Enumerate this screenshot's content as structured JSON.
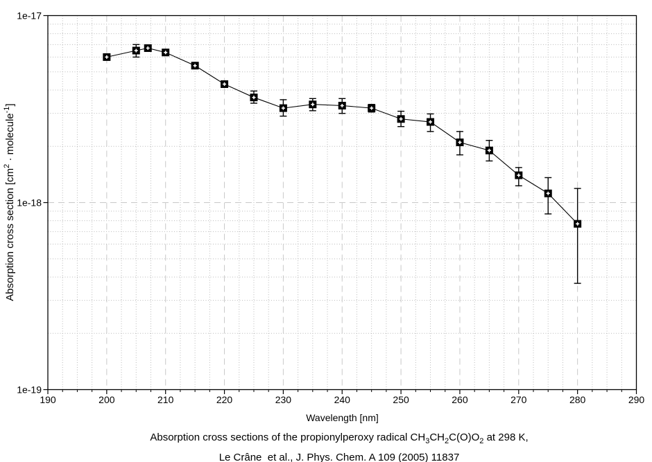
{
  "chart_data": {
    "type": "line",
    "title": "",
    "xlabel": "Wavelength [nm]",
    "ylabel": "Absorption cross section [cm2 · molecule-1]",
    "ylabel_parts": [
      "Absorption cross section [cm",
      "2",
      " · molecule",
      "-1",
      "]"
    ],
    "xlim": [
      190,
      290
    ],
    "ylog_top_exponent": -17,
    "ylog_bottom_exponent": -19,
    "x_major_ticks": [
      190,
      200,
      210,
      220,
      230,
      240,
      250,
      260,
      270,
      280,
      290
    ],
    "x_minor_step": 2.5,
    "y_ticks": [
      {
        "label": "1e-17",
        "value": 1e-17
      },
      {
        "label": "1e-18",
        "value": 1e-18
      },
      {
        "label": "1e-19",
        "value": 1e-19
      }
    ],
    "y_minor_exponents": [
      -18,
      -19
    ],
    "grid": true,
    "legend_position": "none",
    "series": [
      {
        "name": "absorption-cross-section",
        "marker": "black-square-with-white-center-cross",
        "points": [
          {
            "wavelength_nm": 200,
            "sigma": 6e-18,
            "upper": null,
            "lower": null
          },
          {
            "wavelength_nm": 205,
            "sigma": 6.5e-18,
            "upper": 7e-18,
            "lower": 6e-18
          },
          {
            "wavelength_nm": 207,
            "sigma": 6.7e-18,
            "upper": null,
            "lower": null
          },
          {
            "wavelength_nm": 210,
            "sigma": 6.35e-18,
            "upper": null,
            "lower": null
          },
          {
            "wavelength_nm": 215,
            "sigma": 5.4e-18,
            "upper": null,
            "lower": null
          },
          {
            "wavelength_nm": 220,
            "sigma": 4.3e-18,
            "upper": null,
            "lower": null
          },
          {
            "wavelength_nm": 225,
            "sigma": 3.65e-18,
            "upper": 3.95e-18,
            "lower": 3.4e-18
          },
          {
            "wavelength_nm": 230,
            "sigma": 3.2e-18,
            "upper": 3.55e-18,
            "lower": 2.9e-18
          },
          {
            "wavelength_nm": 235,
            "sigma": 3.35e-18,
            "upper": 3.6e-18,
            "lower": 3.1e-18
          },
          {
            "wavelength_nm": 240,
            "sigma": 3.3e-18,
            "upper": 3.6e-18,
            "lower": 3e-18
          },
          {
            "wavelength_nm": 245,
            "sigma": 3.2e-18,
            "upper": 3.35e-18,
            "lower": 3.05e-18
          },
          {
            "wavelength_nm": 250,
            "sigma": 2.8e-18,
            "upper": 3.08e-18,
            "lower": 2.55e-18
          },
          {
            "wavelength_nm": 255,
            "sigma": 2.7e-18,
            "upper": 2.98e-18,
            "lower": 2.4e-18
          },
          {
            "wavelength_nm": 260,
            "sigma": 2.1e-18,
            "upper": 2.4e-18,
            "lower": 1.8e-18
          },
          {
            "wavelength_nm": 265,
            "sigma": 1.9e-18,
            "upper": 2.15e-18,
            "lower": 1.67e-18
          },
          {
            "wavelength_nm": 270,
            "sigma": 1.4e-18,
            "upper": 1.54e-18,
            "lower": 1.23e-18
          },
          {
            "wavelength_nm": 275,
            "sigma": 1.12e-18,
            "upper": 1.36e-18,
            "lower": 8.7e-19
          },
          {
            "wavelength_nm": 280,
            "sigma": 7.7e-19,
            "upper": 1.19e-18,
            "lower": 3.7e-19
          }
        ]
      }
    ]
  },
  "caption": {
    "line1_parts": [
      "Absorption cross sections of the propionylperoxy radical CH",
      "3",
      "CH",
      "2",
      "C(O)O",
      "2",
      " at 298 K,"
    ],
    "line2": "Le Crâne  et al., J. Phys. Chem. A 109 (2005) 11837"
  },
  "colors": {
    "axis": "#000000",
    "grid_minor": "#b9b9b9",
    "grid_major": "#c8c8c8",
    "line": "#000000",
    "marker": "#000000",
    "marker_center": "#ffffff",
    "text": "#000000",
    "background": "#ffffff"
  }
}
